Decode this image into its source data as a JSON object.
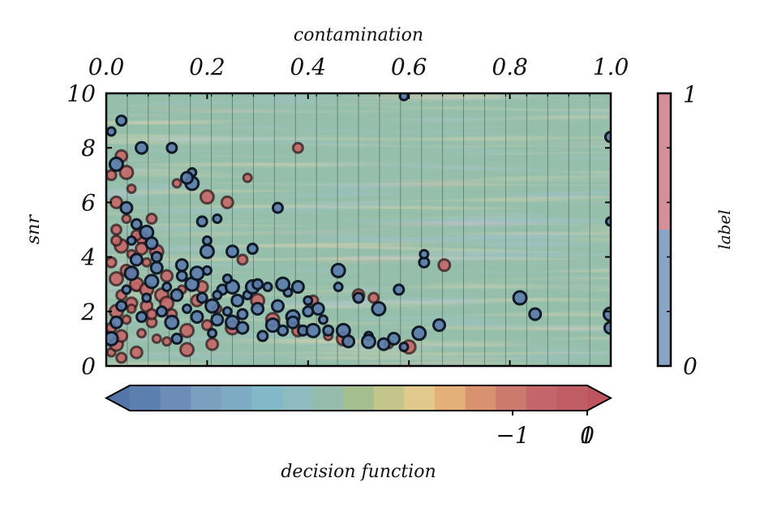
{
  "chart_data": {
    "type": "scatter",
    "background": "filled contour map of decision function over (contamination, snr)",
    "x_axis": {
      "label": "contamination",
      "position": "top",
      "range": [
        0.0,
        1.0
      ],
      "ticks": [
        0.0,
        0.2,
        0.4,
        0.6,
        0.8,
        1.0
      ],
      "tick_labels": [
        "0.0",
        "0.2",
        "0.4",
        "0.6",
        "0.8",
        "1.0"
      ]
    },
    "y_axis": {
      "label": "snr",
      "range": [
        0,
        10
      ],
      "ticks": [
        0,
        2,
        4,
        6,
        8,
        10
      ],
      "tick_labels": [
        "0",
        "2",
        "4",
        "6",
        "8",
        "10"
      ]
    },
    "colorbar_decision": {
      "label": "decision function",
      "orientation": "horizontal",
      "extend": "both",
      "tick_labels": [
        "−1",
        "0",
        "1"
      ],
      "colors": [
        "#5b7fae",
        "#6b8db8",
        "#7b9fbe",
        "#7eabc4",
        "#82b8c8",
        "#8dbbbf",
        "#95bcaa",
        "#a5be90",
        "#c4c58a",
        "#e0c98a",
        "#e2b078",
        "#d99270",
        "#cc7a6e",
        "#c4656a",
        "#c05d64"
      ]
    },
    "colorbar_label": {
      "label": "label",
      "orientation": "vertical",
      "tick_labels": [
        "0",
        "1"
      ],
      "colors": [
        "#8aa4c6",
        "#d49098"
      ]
    },
    "series": [
      {
        "name": "1",
        "color": "#c46868",
        "points": [
          [
            0.01,
            0.5
          ],
          [
            0.02,
            0.8
          ],
          [
            0.03,
            1.1
          ],
          [
            0.01,
            1.4
          ],
          [
            0.04,
            1.7
          ],
          [
            0.02,
            2.0
          ],
          [
            0.05,
            2.3
          ],
          [
            0.03,
            2.6
          ],
          [
            0.06,
            2.9
          ],
          [
            0.02,
            3.2
          ],
          [
            0.04,
            3.5
          ],
          [
            0.01,
            3.8
          ],
          [
            0.05,
            4.1
          ],
          [
            0.03,
            4.4
          ],
          [
            0.07,
            4.7
          ],
          [
            0.02,
            5.0
          ],
          [
            0.04,
            5.4
          ],
          [
            0.06,
            3.0
          ],
          [
            0.08,
            2.2
          ],
          [
            0.09,
            1.6
          ],
          [
            0.1,
            1.0
          ],
          [
            0.11,
            2.6
          ],
          [
            0.12,
            3.3
          ],
          [
            0.13,
            1.9
          ],
          [
            0.15,
            2.8
          ],
          [
            0.16,
            1.3
          ],
          [
            0.18,
            2.4
          ],
          [
            0.2,
            1.5
          ],
          [
            0.22,
            2.1
          ],
          [
            0.25,
            1.4
          ],
          [
            0.07,
            4.3
          ],
          [
            0.09,
            5.4
          ],
          [
            0.05,
            6.5
          ],
          [
            0.04,
            7.1
          ],
          [
            0.03,
            7.7
          ],
          [
            0.06,
            4.8
          ],
          [
            0.08,
            3.8
          ],
          [
            0.1,
            4.2
          ],
          [
            0.02,
            6.0
          ],
          [
            0.01,
            7.0
          ],
          [
            0.14,
            6.7
          ],
          [
            0.2,
            6.2
          ],
          [
            0.24,
            6.0
          ],
          [
            0.27,
            3.9
          ],
          [
            0.28,
            6.9
          ],
          [
            0.3,
            2.4
          ],
          [
            0.38,
            1.3
          ],
          [
            0.41,
            2.4
          ],
          [
            0.44,
            1.1
          ],
          [
            0.47,
            1.0
          ],
          [
            0.5,
            2.6
          ],
          [
            0.53,
            2.5
          ],
          [
            0.56,
            0.8
          ],
          [
            0.6,
            0.7
          ],
          [
            0.67,
            3.7
          ],
          [
            0.38,
            8.0
          ],
          [
            0.12,
            0.9
          ],
          [
            0.16,
            0.6
          ],
          [
            0.06,
            0.5
          ],
          [
            0.03,
            0.3
          ],
          [
            0.07,
            1.2
          ],
          [
            0.12,
            2.3
          ],
          [
            0.21,
            0.8
          ],
          [
            0.09,
            1.9
          ],
          [
            0.05,
            2.1
          ],
          [
            0.33,
            1.7
          ],
          [
            0.19,
            2.9
          ],
          [
            0.02,
            4.6
          ],
          [
            0.05,
            3.4
          ],
          [
            0.08,
            2.8
          ]
        ]
      },
      {
        "name": "0",
        "color": "#5a7bab",
        "points": [
          [
            0.01,
            1.0
          ],
          [
            0.02,
            1.6
          ],
          [
            0.03,
            2.2
          ],
          [
            0.04,
            2.8
          ],
          [
            0.05,
            3.4
          ],
          [
            0.06,
            3.9
          ],
          [
            0.07,
            1.8
          ],
          [
            0.08,
            2.5
          ],
          [
            0.09,
            3.1
          ],
          [
            0.1,
            3.6
          ],
          [
            0.11,
            2.0
          ],
          [
            0.12,
            2.9
          ],
          [
            0.13,
            1.6
          ],
          [
            0.14,
            2.6
          ],
          [
            0.15,
            3.3
          ],
          [
            0.16,
            2.1
          ],
          [
            0.17,
            3.0
          ],
          [
            0.18,
            1.8
          ],
          [
            0.19,
            2.5
          ],
          [
            0.2,
            3.5
          ],
          [
            0.21,
            2.2
          ],
          [
            0.22,
            1.7
          ],
          [
            0.23,
            2.8
          ],
          [
            0.24,
            2.0
          ],
          [
            0.25,
            1.6
          ],
          [
            0.26,
            2.4
          ],
          [
            0.27,
            1.9
          ],
          [
            0.28,
            2.6
          ],
          [
            0.29,
            2.9
          ],
          [
            0.3,
            2.1
          ],
          [
            0.31,
            1.1
          ],
          [
            0.32,
            2.9
          ],
          [
            0.33,
            1.5
          ],
          [
            0.34,
            2.2
          ],
          [
            0.35,
            1.3
          ],
          [
            0.36,
            2.7
          ],
          [
            0.37,
            1.8
          ],
          [
            0.38,
            2.9
          ],
          [
            0.39,
            1.3
          ],
          [
            0.4,
            2.4
          ],
          [
            0.41,
            1.3
          ],
          [
            0.42,
            2.1
          ],
          [
            0.44,
            1.3
          ],
          [
            0.46,
            2.9
          ],
          [
            0.47,
            1.3
          ],
          [
            0.48,
            0.9
          ],
          [
            0.5,
            2.5
          ],
          [
            0.52,
            1.1
          ],
          [
            0.54,
            2.1
          ],
          [
            0.55,
            0.8
          ],
          [
            0.58,
            2.8
          ],
          [
            0.59,
            0.7
          ],
          [
            0.62,
            1.2
          ],
          [
            0.66,
            1.5
          ],
          [
            0.63,
            3.8
          ],
          [
            0.63,
            4.1
          ],
          [
            0.46,
            3.5
          ],
          [
            0.07,
            8.0
          ],
          [
            0.13,
            8.0
          ],
          [
            0.17,
            7.1
          ],
          [
            0.17,
            6.7
          ],
          [
            0.16,
            6.9
          ],
          [
            0.19,
            5.3
          ],
          [
            0.22,
            5.4
          ],
          [
            0.2,
            4.2
          ],
          [
            0.25,
            4.2
          ],
          [
            0.29,
            4.3
          ],
          [
            0.2,
            4.6
          ],
          [
            0.18,
            3.4
          ],
          [
            0.15,
            3.7
          ],
          [
            0.34,
            5.8
          ],
          [
            0.59,
            9.9
          ],
          [
            0.82,
            2.5
          ],
          [
            0.85,
            1.9
          ],
          [
            0.999,
            8.4
          ],
          [
            0.999,
            5.3
          ],
          [
            0.999,
            1.9
          ],
          [
            0.999,
            1.4
          ],
          [
            0.03,
            9.0
          ],
          [
            0.01,
            8.6
          ],
          [
            0.02,
            7.4
          ],
          [
            0.04,
            5.8
          ],
          [
            0.06,
            5.2
          ],
          [
            0.05,
            4.6
          ],
          [
            0.08,
            4.9
          ],
          [
            0.09,
            4.5
          ],
          [
            0.1,
            4.0
          ],
          [
            0.21,
            1.2
          ],
          [
            0.25,
            2.9
          ],
          [
            0.27,
            1.4
          ],
          [
            0.14,
            1.0
          ],
          [
            0.22,
            2.6
          ],
          [
            0.35,
            3.0
          ],
          [
            0.37,
            1.6
          ],
          [
            0.4,
            2.0
          ],
          [
            0.43,
            1.7
          ],
          [
            0.52,
            0.9
          ],
          [
            0.57,
            1.0
          ],
          [
            0.3,
            3.0
          ],
          [
            0.24,
            3.2
          ]
        ]
      }
    ]
  }
}
